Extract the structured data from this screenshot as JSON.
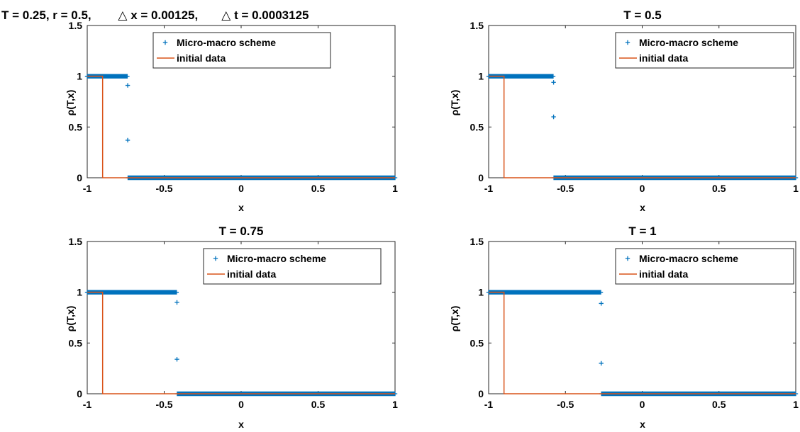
{
  "chart_data": [
    {
      "type": "scatter",
      "title": "T = 0.25, r = 0.5,        △ x = 0.00125,       △ t = 0.0003125",
      "xlabel": "x",
      "ylabel": "ρ(T,x)",
      "xlim": [
        -1,
        1
      ],
      "ylim": [
        0,
        1.5
      ],
      "xticks": [
        "-1",
        "-0.5",
        "0",
        "0.5",
        "1"
      ],
      "yticks": [
        "0",
        "0.5",
        "1",
        "1.5"
      ],
      "legend": "top-right",
      "series": [
        {
          "name": "Micro-macro scheme",
          "marker": "+",
          "color": "#0072bd",
          "segments": [
            {
              "from": -1,
              "to": -0.74,
              "y": 1
            },
            {
              "from": -0.735,
              "to": 1,
              "y": 0
            }
          ],
          "x": [
            -0.737,
            -0.737
          ],
          "y": [
            0.91,
            0.37
          ]
        },
        {
          "name": "initial data",
          "style": "line",
          "color": "#d95319",
          "x": [
            -1,
            -0.9,
            -0.9,
            1
          ],
          "y": [
            1,
            1,
            0,
            0
          ]
        }
      ]
    },
    {
      "type": "scatter",
      "title": "T = 0.5",
      "xlabel": "x",
      "ylabel": "ρ(T,x)",
      "xlim": [
        -1,
        1
      ],
      "ylim": [
        0,
        1.5
      ],
      "xticks": [
        "-1",
        "-0.5",
        "0",
        "0.5",
        "1"
      ],
      "yticks": [
        "0",
        "0.5",
        "1",
        "1.5"
      ],
      "legend": "top-right",
      "series": [
        {
          "name": "Micro-macro scheme",
          "marker": "+",
          "color": "#0072bd",
          "segments": [
            {
              "from": -1,
              "to": -0.58,
              "y": 1
            },
            {
              "from": -0.575,
              "to": 1,
              "y": 0
            }
          ],
          "x": [
            -0.577,
            -0.577
          ],
          "y": [
            0.94,
            0.6
          ]
        },
        {
          "name": "initial data",
          "style": "line",
          "color": "#d95319",
          "x": [
            -1,
            -0.9,
            -0.9,
            1
          ],
          "y": [
            1,
            1,
            0,
            0
          ]
        }
      ]
    },
    {
      "type": "scatter",
      "title": "T = 0.75",
      "xlabel": "x",
      "ylabel": "ρ(T,x)",
      "xlim": [
        -1,
        1
      ],
      "ylim": [
        0,
        1.5
      ],
      "xticks": [
        "-1",
        "-0.5",
        "0",
        "0.5",
        "1"
      ],
      "yticks": [
        "0",
        "0.5",
        "1",
        "1.5"
      ],
      "legend": "top-right",
      "series": [
        {
          "name": "Micro-macro scheme",
          "marker": "+",
          "color": "#0072bd",
          "segments": [
            {
              "from": -1,
              "to": -0.42,
              "y": 1
            },
            {
              "from": -0.415,
              "to": 1,
              "y": 0
            }
          ],
          "x": [
            -0.417,
            -0.417
          ],
          "y": [
            0.9,
            0.34
          ]
        },
        {
          "name": "initial data",
          "style": "line",
          "color": "#d95319",
          "x": [
            -1,
            -0.9,
            -0.9,
            1
          ],
          "y": [
            1,
            1,
            0,
            0
          ]
        }
      ]
    },
    {
      "type": "scatter",
      "title": "T = 1",
      "xlabel": "x",
      "ylabel": "ρ(T,x)",
      "xlim": [
        -1,
        1
      ],
      "ylim": [
        0,
        1.5
      ],
      "xticks": [
        "-1",
        "-0.5",
        "0",
        "0.5",
        "1"
      ],
      "yticks": [
        "0",
        "0.5",
        "1",
        "1.5"
      ],
      "legend": "top-right",
      "series": [
        {
          "name": "Micro-macro scheme",
          "marker": "+",
          "color": "#0072bd",
          "segments": [
            {
              "from": -1,
              "to": -0.27,
              "y": 1
            },
            {
              "from": -0.265,
              "to": 1,
              "y": 0
            }
          ],
          "x": [
            -0.267,
            -0.267
          ],
          "y": [
            0.89,
            0.3
          ]
        },
        {
          "name": "initial data",
          "style": "line",
          "color": "#d95319",
          "x": [
            -1,
            -0.9,
            -0.9,
            1
          ],
          "y": [
            1,
            1,
            0,
            0
          ]
        }
      ]
    }
  ]
}
